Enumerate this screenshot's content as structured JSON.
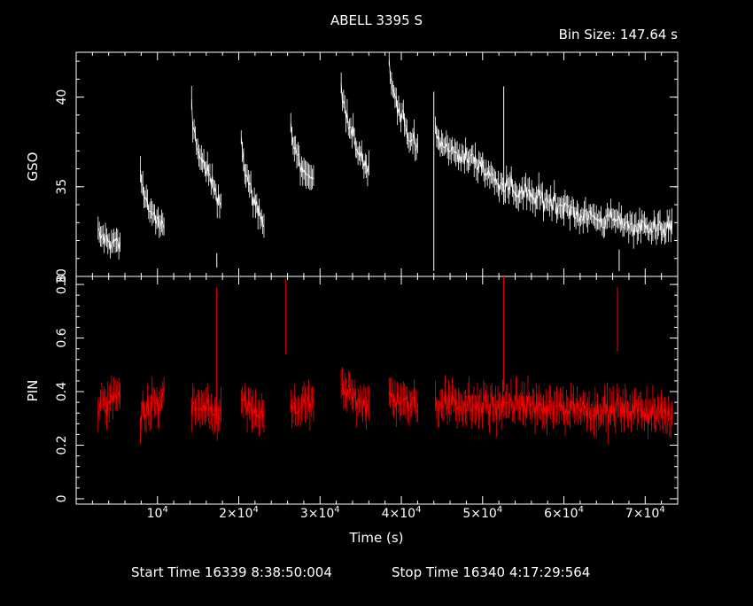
{
  "title": "ABELL 3395 S",
  "bin_size_label": "Bin Size:  147.64  s",
  "footer": {
    "start": "Start Time 16339   8:38:50:004",
    "stop": "Stop Time 16340   4:17:29:564"
  },
  "colors": {
    "background": "#000000",
    "axes": "#ffffff",
    "gso": "#ffffff",
    "pin": "#ff0000"
  },
  "chart_data": [
    {
      "type": "line",
      "panel": "top",
      "ylabel": "GSO",
      "xlim": [
        0,
        74000
      ],
      "ylim": [
        30,
        42.5
      ],
      "yticks": [
        30,
        35,
        40
      ],
      "segments": [
        {
          "x": [
            2700,
            5400
          ],
          "y": [
            32.4,
            31.8
          ]
        },
        {
          "x": [
            7900,
            10800
          ],
          "y": [
            36.0,
            32.5
          ]
        },
        {
          "x": [
            14200,
            17800
          ],
          "y": [
            39.5,
            34.3
          ]
        },
        {
          "x": [
            20300,
            23100
          ],
          "y": [
            38.0,
            33.0
          ]
        },
        {
          "x": [
            26400,
            29200
          ],
          "y": [
            38.5,
            35.2
          ]
        },
        {
          "x": [
            32600,
            36000
          ],
          "y": [
            41.0,
            36.0
          ]
        },
        {
          "x": [
            38500,
            42000
          ],
          "y": [
            42.5,
            37.0
          ]
        },
        {
          "x": [
            44200,
            50000
          ],
          "y": [
            38.0,
            36.3
          ]
        },
        {
          "x": [
            50000,
            60000
          ],
          "y": [
            36.3,
            34.0
          ]
        },
        {
          "x": [
            60000,
            73300
          ],
          "y": [
            34.0,
            32.6
          ]
        }
      ],
      "spikes": [
        {
          "x": 44000,
          "y0": 30.3,
          "y1": 40.3
        },
        {
          "x": 52600,
          "y0": 34.0,
          "y1": 40.6
        },
        {
          "x": 17300,
          "y0": 30.5,
          "y1": 31.3
        },
        {
          "x": 66800,
          "y0": 30.3,
          "y1": 31.5
        }
      ]
    },
    {
      "type": "line",
      "panel": "bottom",
      "ylabel": "PIN",
      "xlabel": "Time (s)",
      "xlim": [
        0,
        74000
      ],
      "ylim": [
        -0.02,
        0.83
      ],
      "yticks": [
        0,
        0.2,
        0.4,
        0.6,
        0.8
      ],
      "xticks": [
        10000,
        20000,
        30000,
        40000,
        50000,
        60000,
        70000
      ],
      "segments": [
        {
          "x": [
            2700,
            5400
          ],
          "y": [
            0.35,
            0.38
          ]
        },
        {
          "x": [
            7900,
            10800
          ],
          "y": [
            0.32,
            0.37
          ]
        },
        {
          "x": [
            14200,
            17800
          ],
          "y": [
            0.34,
            0.32
          ]
        },
        {
          "x": [
            20300,
            23100
          ],
          "y": [
            0.36,
            0.3
          ]
        },
        {
          "x": [
            26400,
            29200
          ],
          "y": [
            0.33,
            0.36
          ]
        },
        {
          "x": [
            32600,
            36000
          ],
          "y": [
            0.4,
            0.35
          ]
        },
        {
          "x": [
            38500,
            42000
          ],
          "y": [
            0.38,
            0.34
          ]
        },
        {
          "x": [
            44200,
            73300
          ],
          "y": [
            0.36,
            0.32
          ]
        }
      ],
      "spikes": [
        {
          "x": 17300,
          "y0": 0.28,
          "y1": 0.79
        },
        {
          "x": 25800,
          "y0": 0.54,
          "y1": 0.82
        },
        {
          "x": 52600,
          "y0": 0.4,
          "y1": 0.83
        },
        {
          "x": 66600,
          "y0": 0.55,
          "y1": 0.79
        }
      ]
    }
  ],
  "xtick_labels": [
    {
      "base": "10",
      "exp": "4"
    },
    {
      "base": "2×10",
      "exp": "4"
    },
    {
      "base": "3×10",
      "exp": "4"
    },
    {
      "base": "4×10",
      "exp": "4"
    },
    {
      "base": "5×10",
      "exp": "4"
    },
    {
      "base": "6×10",
      "exp": "4"
    },
    {
      "base": "7×10",
      "exp": "4"
    }
  ]
}
